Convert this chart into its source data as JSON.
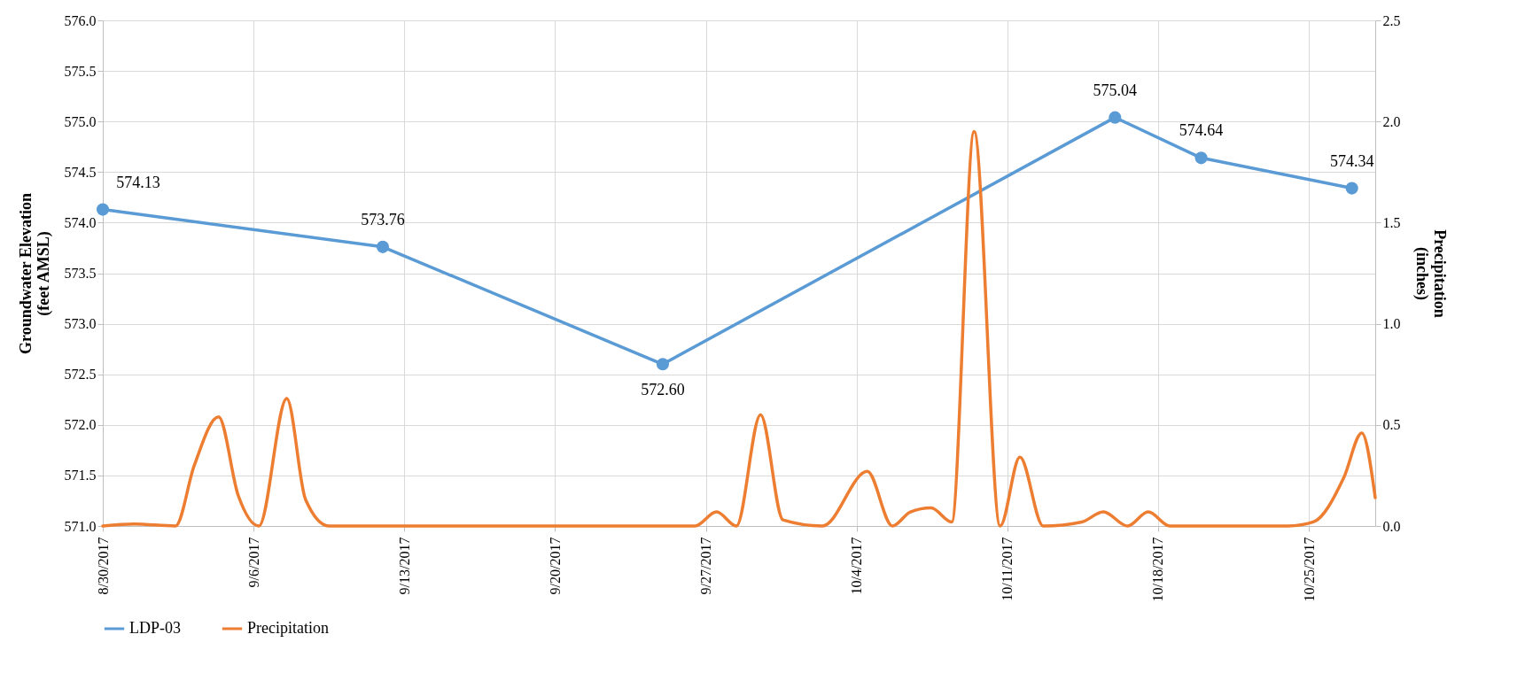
{
  "chart_data": {
    "type": "line",
    "ylabel": "Groundwater Elevation\n(feet AMSL)",
    "y2label": "Precipitation\n(inches)",
    "xlim": [
      "2017-08-30",
      "2017-10-28T02:00"
    ],
    "xticks": [
      {
        "value": "2017-08-30",
        "label": "8/30/2017"
      },
      {
        "value": "2017-09-06",
        "label": "9/6/2017"
      },
      {
        "value": "2017-09-13",
        "label": "9/13/2017"
      },
      {
        "value": "2017-09-20",
        "label": "9/20/2017"
      },
      {
        "value": "2017-09-27",
        "label": "9/27/2017"
      },
      {
        "value": "2017-10-04",
        "label": "10/4/2017"
      },
      {
        "value": "2017-10-11",
        "label": "10/11/2017"
      },
      {
        "value": "2017-10-18",
        "label": "10/18/2017"
      },
      {
        "value": "2017-10-25",
        "label": "10/25/2017"
      }
    ],
    "ylim": [
      571,
      576
    ],
    "yticks": [
      {
        "value": 571,
        "label": "571.0"
      },
      {
        "value": 571.5,
        "label": "571.5"
      },
      {
        "value": 572,
        "label": "572.0"
      },
      {
        "value": 572.5,
        "label": "572.5"
      },
      {
        "value": 573,
        "label": "573.0"
      },
      {
        "value": 573.5,
        "label": "573.5"
      },
      {
        "value": 574,
        "label": "574.0"
      },
      {
        "value": 574.5,
        "label": "574.5"
      },
      {
        "value": 575,
        "label": "575.0"
      },
      {
        "value": 575.5,
        "label": "575.5"
      },
      {
        "value": 576,
        "label": "576.0"
      }
    ],
    "y2lim": [
      0,
      2.5
    ],
    "y2ticks": [
      {
        "value": 0,
        "label": "0.0"
      },
      {
        "value": 0.5,
        "label": "0.5"
      },
      {
        "value": 1,
        "label": "1.0"
      },
      {
        "value": 1.5,
        "label": "1.5"
      },
      {
        "value": 2,
        "label": "2.0"
      },
      {
        "value": 2.5,
        "label": "2.5"
      }
    ],
    "grid": true,
    "legend": "bottom",
    "series": [
      {
        "name": "LDP-03",
        "color": "#5b9bd5",
        "marker": "circle",
        "x": [
          "2017-08-30",
          "2017-09-12",
          "2017-09-25",
          "2017-10-16",
          "2017-10-20",
          "2017-10-27"
        ],
        "values": [
          574.13,
          573.76,
          572.6,
          575.04,
          574.64,
          574.34
        ],
        "value_labels": [
          "574.13",
          "573.76",
          "572.60",
          "575.04",
          "574.64",
          "574.34"
        ]
      },
      {
        "name": "Precipitation",
        "color": "#ed7d31",
        "axis": "y2",
        "marker": "none",
        "x": [
          "2017-08-30T00:00",
          "2017-08-31T11:00",
          "2017-09-02T09:00",
          "2017-09-03T06:00",
          "2017-09-04T09:00",
          "2017-09-05T07:00",
          "2017-09-06T06:00",
          "2017-09-07T13:00",
          "2017-09-08T10:00",
          "2017-09-09T12:00",
          "2017-09-26T12:00",
          "2017-09-27T12:00",
          "2017-09-28T10:00",
          "2017-09-29T13:00",
          "2017-09-30T14:00",
          "2017-10-02T10:00",
          "2017-10-04T12:00",
          "2017-10-05T16:00",
          "2017-10-06T12:00",
          "2017-10-07T11:00",
          "2017-10-08T10:00",
          "2017-10-09T11:00",
          "2017-10-10T16:00",
          "2017-10-11T14:00",
          "2017-10-12T16:00",
          "2017-10-14T11:00",
          "2017-10-15T11:00",
          "2017-10-16T14:00",
          "2017-10-17T13:00",
          "2017-10-18T13:00",
          "2017-10-24T01:00",
          "2017-10-25T05:00",
          "2017-10-26T15:00",
          "2017-10-27T11:00",
          "2017-10-28T02:00"
        ],
        "values": [
          0,
          0.01,
          0,
          0.3,
          0.54,
          0.15,
          0,
          0.63,
          0.13,
          0,
          0,
          0.07,
          0,
          0.55,
          0.03,
          0,
          0.27,
          0,
          0.07,
          0.09,
          0.02,
          1.95,
          0,
          0.34,
          0,
          0.02,
          0.07,
          0,
          0.07,
          0,
          0,
          0.02,
          0.24,
          0.46,
          0.14
        ]
      }
    ]
  }
}
